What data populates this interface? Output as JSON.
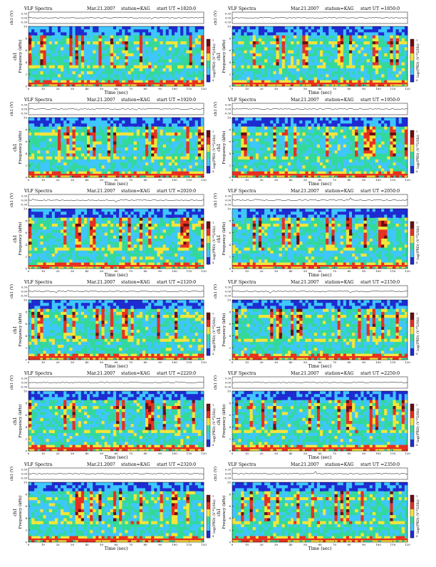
{
  "header_labels": {
    "title": "VLF Spectra",
    "date": "Mar.21.2007",
    "station": "station=KAG",
    "start_prefix": "start UT ="
  },
  "axis_labels": {
    "time": "Time (sec)",
    "frequency": "Frequency (kHz)",
    "channel": "ch1",
    "amplitude": "ch1 (V)",
    "colorbar": "log(PSD) (V^2/Hz)"
  },
  "chart_data": [
    {
      "type": "heatmap",
      "start_ut": "1820:0",
      "xlim": [
        0,
        120
      ],
      "ylim": [
        0,
        10
      ],
      "x_ticks": [
        0,
        10,
        20,
        30,
        40,
        50,
        60,
        70,
        80,
        90,
        100,
        110,
        120
      ],
      "y_ticks": [
        0,
        2,
        4,
        6,
        8,
        10
      ],
      "amp_ticks": [
        "0.30",
        "0.00",
        "-0.30"
      ],
      "colorbar_ticks": [
        "-1",
        "-2",
        "-3",
        "-4"
      ]
    },
    {
      "type": "heatmap",
      "start_ut": "1850:0",
      "xlim": [
        0,
        120
      ],
      "ylim": [
        0,
        10
      ],
      "x_ticks": [
        0,
        10,
        20,
        30,
        40,
        50,
        60,
        70,
        80,
        90,
        100,
        110,
        120
      ],
      "y_ticks": [
        0,
        2,
        4,
        6,
        8,
        10
      ],
      "amp_ticks": [
        "0.30",
        "0.00",
        "-0.30"
      ],
      "colorbar_ticks": [
        "-1",
        "-2",
        "-3",
        "-4"
      ]
    },
    {
      "type": "heatmap",
      "start_ut": "1920:0",
      "xlim": [
        0,
        120
      ],
      "ylim": [
        0,
        10
      ],
      "x_ticks": [
        0,
        10,
        20,
        30,
        40,
        50,
        60,
        70,
        80,
        90,
        100,
        110,
        120
      ],
      "y_ticks": [
        0,
        2,
        4,
        6,
        8,
        10
      ],
      "amp_ticks": [
        "0.30",
        "0.00",
        "-0.30"
      ],
      "colorbar_ticks": [
        "-1",
        "-2",
        "-3",
        "-4"
      ]
    },
    {
      "type": "heatmap",
      "start_ut": "1950:0",
      "xlim": [
        0,
        120
      ],
      "ylim": [
        0,
        10
      ],
      "x_ticks": [
        0,
        10,
        20,
        30,
        40,
        50,
        60,
        70,
        80,
        90,
        100,
        110,
        120
      ],
      "y_ticks": [
        0,
        2,
        4,
        6,
        8,
        10
      ],
      "amp_ticks": [
        "0.30",
        "0.00",
        "-0.30"
      ],
      "colorbar_ticks": [
        "-1",
        "-2",
        "-3",
        "-4"
      ]
    },
    {
      "type": "heatmap",
      "start_ut": "2020:0",
      "xlim": [
        0,
        120
      ],
      "ylim": [
        0,
        10
      ],
      "x_ticks": [
        0,
        10,
        20,
        30,
        40,
        50,
        60,
        70,
        80,
        90,
        100,
        110,
        120
      ],
      "y_ticks": [
        0,
        2,
        4,
        6,
        8,
        10
      ],
      "amp_ticks": [
        "0.30",
        "0.00",
        "-0.30"
      ],
      "colorbar_ticks": [
        "-1",
        "-2",
        "-3",
        "-4"
      ]
    },
    {
      "type": "heatmap",
      "start_ut": "2050:0",
      "xlim": [
        0,
        120
      ],
      "ylim": [
        0,
        10
      ],
      "x_ticks": [
        0,
        10,
        20,
        30,
        40,
        50,
        60,
        70,
        80,
        90,
        100,
        110,
        120
      ],
      "y_ticks": [
        0,
        2,
        4,
        6,
        8,
        10
      ],
      "amp_ticks": [
        "0.30",
        "0.00",
        "-0.30"
      ],
      "colorbar_ticks": [
        "-1",
        "-2",
        "-3",
        "-4"
      ]
    },
    {
      "type": "heatmap",
      "start_ut": "2120:0",
      "xlim": [
        0,
        120
      ],
      "ylim": [
        0,
        10
      ],
      "x_ticks": [
        0,
        10,
        20,
        30,
        40,
        50,
        60,
        70,
        80,
        90,
        100,
        110,
        120
      ],
      "y_ticks": [
        0,
        2,
        4,
        6,
        8,
        10
      ],
      "amp_ticks": [
        "0.30",
        "0.00",
        "-0.30"
      ],
      "colorbar_ticks": [
        "-1",
        "-2",
        "-3",
        "-4"
      ]
    },
    {
      "type": "heatmap",
      "start_ut": "2150:0",
      "xlim": [
        0,
        120
      ],
      "ylim": [
        0,
        10
      ],
      "x_ticks": [
        0,
        10,
        20,
        30,
        40,
        50,
        60,
        70,
        80,
        90,
        100,
        110,
        120
      ],
      "y_ticks": [
        0,
        2,
        4,
        6,
        8,
        10
      ],
      "amp_ticks": [
        "0.30",
        "0.00",
        "-0.30"
      ],
      "colorbar_ticks": [
        "-1",
        "-2",
        "-3",
        "-4"
      ]
    },
    {
      "type": "heatmap",
      "start_ut": "2220:0",
      "xlim": [
        0,
        120
      ],
      "ylim": [
        0,
        10
      ],
      "x_ticks": [
        0,
        10,
        20,
        30,
        40,
        50,
        60,
        70,
        80,
        90,
        100,
        110,
        120
      ],
      "y_ticks": [
        0,
        2,
        4,
        6,
        8,
        10
      ],
      "amp_ticks": [
        "0.30",
        "0.00",
        "-0.30"
      ],
      "colorbar_ticks": [
        "-1",
        "-2",
        "-3",
        "-4"
      ]
    },
    {
      "type": "heatmap",
      "start_ut": "2250:0",
      "xlim": [
        0,
        120
      ],
      "ylim": [
        0,
        10
      ],
      "x_ticks": [
        0,
        10,
        20,
        30,
        40,
        50,
        60,
        70,
        80,
        90,
        100,
        110,
        120
      ],
      "y_ticks": [
        0,
        2,
        4,
        6,
        8,
        10
      ],
      "amp_ticks": [
        "0.30",
        "0.00",
        "-0.30"
      ],
      "colorbar_ticks": [
        "-1",
        "-2",
        "-3",
        "-4"
      ]
    },
    {
      "type": "heatmap",
      "start_ut": "2320:0",
      "xlim": [
        0,
        120
      ],
      "ylim": [
        0,
        10
      ],
      "x_ticks": [
        0,
        10,
        20,
        30,
        40,
        50,
        60,
        70,
        80,
        90,
        100,
        110,
        120
      ],
      "y_ticks": [
        0,
        2,
        4,
        6,
        8,
        10
      ],
      "amp_ticks": [
        "0.30",
        "0.00",
        "-0.30"
      ],
      "colorbar_ticks": [
        "-1",
        "-2",
        "-3",
        "-4"
      ]
    },
    {
      "type": "heatmap",
      "start_ut": "2350:0",
      "xlim": [
        0,
        120
      ],
      "ylim": [
        0,
        10
      ],
      "x_ticks": [
        0,
        10,
        20,
        30,
        40,
        50,
        60,
        70,
        80,
        90,
        100,
        110,
        120
      ],
      "y_ticks": [
        0,
        2,
        4,
        6,
        8,
        10
      ],
      "amp_ticks": [
        "0.30",
        "0.00",
        "-0.30"
      ],
      "colorbar_ticks": [
        "-1",
        "-2",
        "-3",
        "-4"
      ]
    }
  ],
  "colors": {
    "low": "#1f2bd1",
    "mid_low": "#3fc6ff",
    "mid": "#33d99a",
    "mid_high": "#f3e53a",
    "high": "#e83020",
    "max": "#6e0e10"
  }
}
